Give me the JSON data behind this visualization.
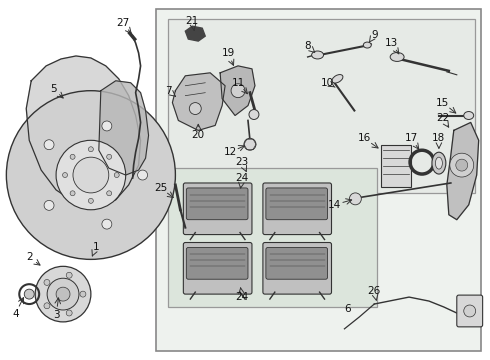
{
  "bg_color": "#ffffff",
  "line_color": "#333333",
  "fill_light": "#d8d8d8",
  "fill_mid": "#bbbbbb",
  "fill_dark": "#888888",
  "box_bg": "#eef2ee",
  "inner_bg": "#e6eae6",
  "pad_bg": "#dce5dc",
  "figsize": [
    4.9,
    3.6
  ],
  "dpi": 100
}
